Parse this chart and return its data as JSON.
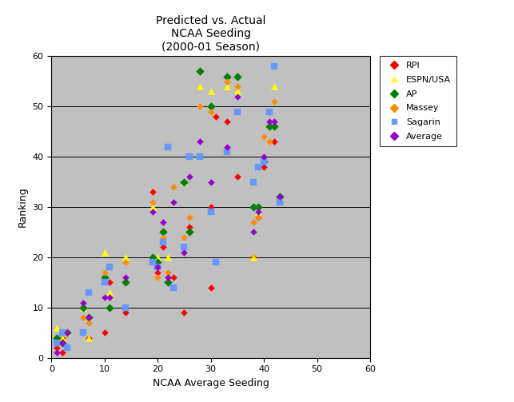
{
  "title": "Predicted vs. Actual\nNCAA Seeding\n(2000-01 Season)",
  "xlabel": "NCAA Average Seeding",
  "ylabel": "Ranking",
  "xlim": [
    0,
    60
  ],
  "ylim": [
    0,
    60
  ],
  "xticks": [
    0,
    10,
    20,
    30,
    40,
    50,
    60
  ],
  "yticks": [
    0,
    10,
    20,
    30,
    40,
    50,
    60
  ],
  "bg_color": "#c0c0c0",
  "fig_width": 6.43,
  "fig_height": 5.03,
  "title_fontsize": 10,
  "axis_fontsize": 9,
  "series": {
    "RPI": {
      "color": "#ff0000",
      "marker": "D",
      "markersize": 4,
      "x": [
        1,
        2,
        2,
        3,
        6,
        7,
        10,
        10,
        11,
        11,
        14,
        19,
        20,
        21,
        22,
        23,
        25,
        26,
        30,
        30,
        31,
        33,
        35,
        38,
        39,
        40,
        41,
        42,
        43
      ],
      "y": [
        2,
        1,
        4,
        5,
        5,
        4,
        5,
        16,
        10,
        15,
        9,
        33,
        17,
        22,
        15,
        16,
        9,
        26,
        30,
        14,
        48,
        47,
        36,
        20,
        28,
        38,
        49,
        43,
        32
      ]
    },
    "ESPN/USA": {
      "color": "#ffff00",
      "marker": "^",
      "markersize": 6,
      "x": [
        1,
        2,
        3,
        6,
        7,
        10,
        11,
        14,
        19,
        20,
        22,
        25,
        28,
        30,
        33,
        35,
        38,
        39,
        42,
        43
      ],
      "y": [
        6,
        4,
        5,
        10,
        4,
        21,
        13,
        20,
        30,
        20,
        20,
        35,
        54,
        53,
        54,
        53,
        20,
        29,
        54,
        32
      ]
    },
    "AP": {
      "color": "#008000",
      "marker": "D",
      "markersize": 5,
      "x": [
        1,
        2,
        3,
        6,
        7,
        10,
        11,
        14,
        19,
        20,
        21,
        22,
        25,
        26,
        28,
        30,
        33,
        35,
        38,
        39,
        40,
        41,
        42,
        43
      ],
      "y": [
        4,
        3,
        5,
        10,
        8,
        16,
        10,
        15,
        20,
        19,
        25,
        15,
        35,
        25,
        57,
        50,
        56,
        56,
        30,
        30,
        39,
        46,
        46,
        32
      ]
    },
    "Massey": {
      "color": "#ff8c00",
      "marker": "D",
      "markersize": 4,
      "x": [
        1,
        2,
        3,
        6,
        7,
        10,
        11,
        14,
        19,
        20,
        21,
        22,
        23,
        25,
        26,
        28,
        30,
        31,
        33,
        35,
        38,
        39,
        40,
        41,
        42,
        43
      ],
      "y": [
        3,
        5,
        5,
        8,
        7,
        17,
        12,
        19,
        31,
        16,
        24,
        17,
        34,
        24,
        28,
        50,
        49,
        19,
        55,
        54,
        27,
        28,
        44,
        43,
        51,
        31
      ]
    },
    "Sagarin": {
      "color": "#6699ff",
      "marker": "s",
      "markersize": 6,
      "x": [
        1,
        2,
        3,
        6,
        7,
        10,
        11,
        14,
        19,
        20,
        21,
        22,
        23,
        25,
        26,
        28,
        30,
        31,
        33,
        35,
        38,
        39,
        40,
        41,
        42,
        43
      ],
      "y": [
        3,
        5,
        2,
        5,
        13,
        15,
        18,
        10,
        19,
        18,
        23,
        42,
        14,
        22,
        40,
        40,
        29,
        19,
        41,
        49,
        35,
        38,
        39,
        49,
        58,
        31
      ]
    },
    "Average": {
      "color": "#9900cc",
      "marker": "D",
      "markersize": 4,
      "x": [
        1,
        2,
        3,
        6,
        7,
        10,
        11,
        14,
        19,
        20,
        21,
        22,
        23,
        25,
        26,
        28,
        30,
        33,
        35,
        38,
        39,
        40,
        41,
        42,
        43
      ],
      "y": [
        1,
        3,
        5,
        11,
        8,
        12,
        12,
        16,
        29,
        18,
        27,
        16,
        31,
        21,
        36,
        43,
        35,
        42,
        52,
        25,
        29,
        40,
        47,
        47,
        32
      ]
    }
  }
}
